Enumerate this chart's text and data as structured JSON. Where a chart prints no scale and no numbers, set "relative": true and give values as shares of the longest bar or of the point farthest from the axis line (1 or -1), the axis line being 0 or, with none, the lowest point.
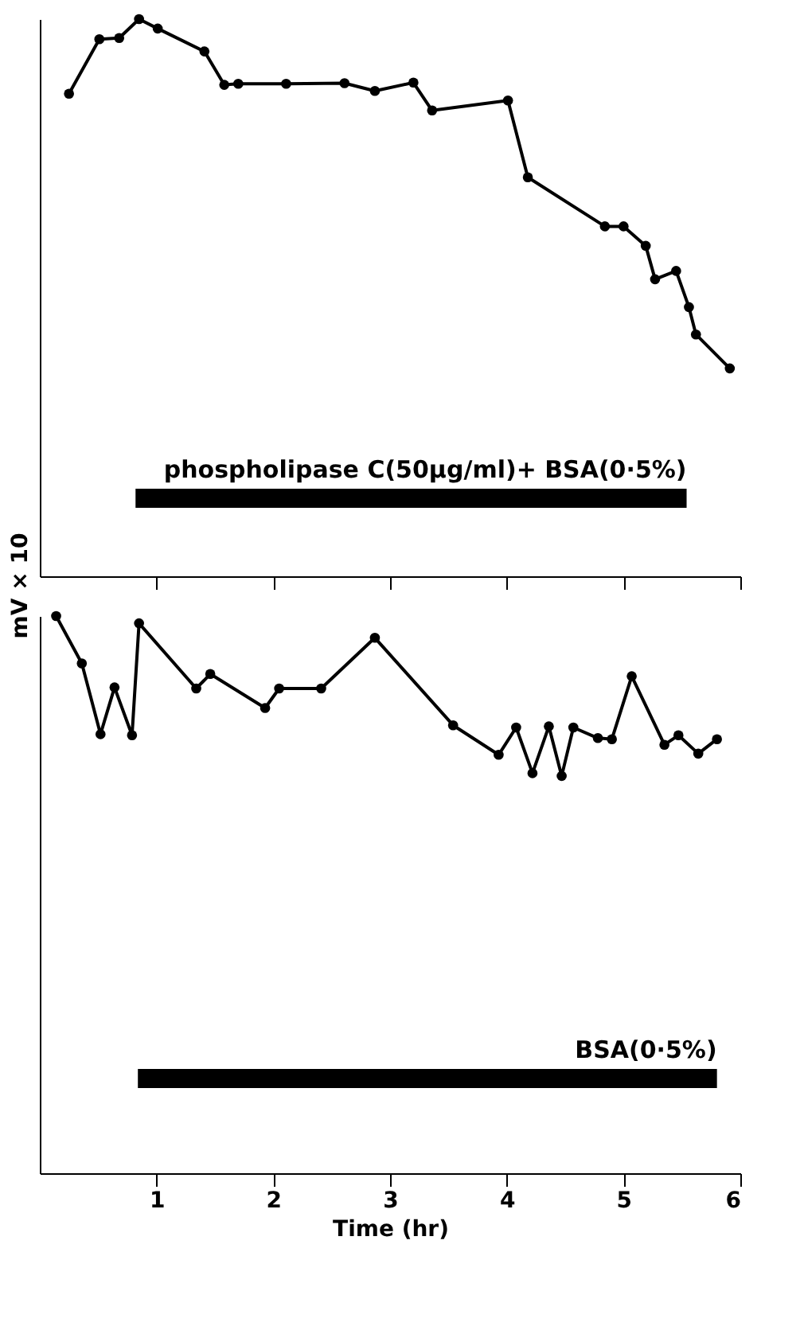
{
  "chart_data": [
    {
      "type": "line",
      "relative": true,
      "ylabel": "mV × 10",
      "xlim": [
        0,
        6
      ],
      "xticks": [
        1,
        2,
        3,
        4,
        5,
        6
      ],
      "tick_labels": false,
      "grid": false,
      "marker": "circle",
      "line_style": "solid",
      "x": [
        0.25,
        0.51,
        0.68,
        0.85,
        1.01,
        1.41,
        1.58,
        1.7,
        2.11,
        2.61,
        2.87,
        3.2,
        3.36,
        4.01,
        4.18,
        4.84,
        5.0,
        5.19,
        5.27,
        5.45,
        5.56,
        5.62,
        5.91
      ],
      "series": [
        {
          "color": "#000000",
          "values": [
            0.866,
            0.964,
            0.966,
            1.0,
            0.983,
            0.942,
            0.882,
            0.884,
            0.884,
            0.885,
            0.871,
            0.886,
            0.836,
            0.854,
            0.716,
            0.628,
            0.628,
            0.593,
            0.533,
            0.548,
            0.483,
            0.434,
            0.373
          ]
        },
        {
          "name": "phospholipase C(50μg/ml)+ BSA(0·5%)",
          "color": "#000000",
          "marker": "none",
          "x": [
            0.82,
            5.54
          ],
          "values": [
            0.14,
            0.14
          ]
        }
      ]
    },
    {
      "type": "line",
      "relative": true,
      "xlabel": "Time (hr)",
      "xlim": [
        0,
        6
      ],
      "xticks": [
        1,
        2,
        3,
        4,
        5,
        6
      ],
      "tick_labels": "x",
      "grid": false,
      "marker": "circle",
      "line_style": "solid",
      "x": [
        0.14,
        0.36,
        0.52,
        0.64,
        0.79,
        0.85,
        1.34,
        1.46,
        1.93,
        2.05,
        2.41,
        2.87,
        3.54,
        3.93,
        4.08,
        4.22,
        4.36,
        4.47,
        4.57,
        4.78,
        4.9,
        5.07,
        5.35,
        5.47,
        5.64,
        5.8
      ],
      "series": [
        {
          "color": "#000000",
          "values": [
            1.0,
            0.915,
            0.788,
            0.872,
            0.786,
            0.987,
            0.87,
            0.896,
            0.835,
            0.87,
            0.87,
            0.961,
            0.804,
            0.751,
            0.8,
            0.718,
            0.802,
            0.713,
            0.8,
            0.781,
            0.779,
            0.892,
            0.769,
            0.786,
            0.753,
            0.779
          ]
        },
        {
          "name": "BSA(0·5%)",
          "color": "#000000",
          "marker": "none",
          "x": [
            0.84,
            5.8
          ],
          "values": [
            0.17,
            0.17
          ]
        }
      ]
    }
  ]
}
